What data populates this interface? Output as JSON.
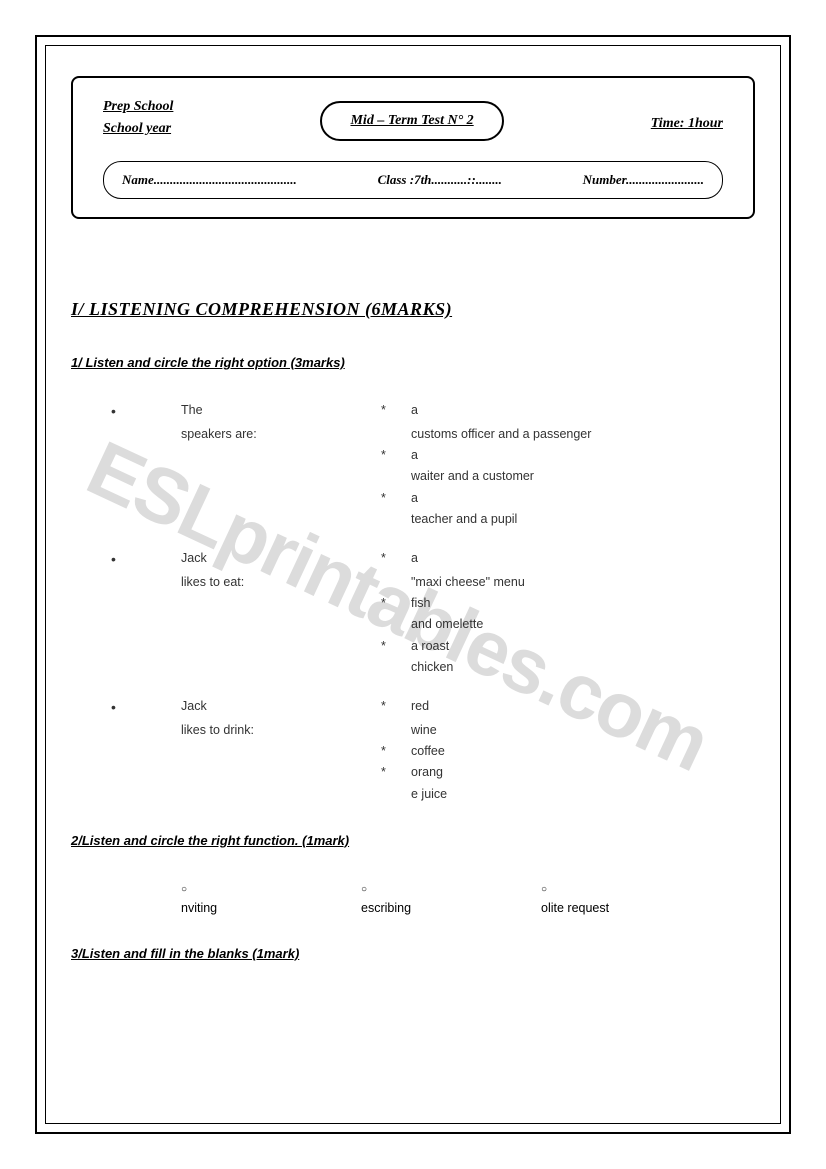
{
  "watermark": "ESLprintables.com",
  "header": {
    "school_line1": "Prep School",
    "school_line2": "School year",
    "title": "Mid – Term Test N° 2",
    "time": "Time: 1hour",
    "name_label": "Name............................................",
    "class_label": "Class :7th...........::........",
    "number_label": "Number........................"
  },
  "section1": {
    "title": "I/ LISTENING COMPREHENSION (6MARKS)",
    "sub1": {
      "heading": "1/ Listen and circle the right option (3marks)",
      "q1": {
        "stem_a": "The",
        "stem_b": "speakers are:",
        "opt1a": "a",
        "opt1b": "customs officer and a passenger",
        "opt2a": "a",
        "opt2b": "waiter and a customer",
        "opt3a": "a",
        "opt3b": "teacher and a pupil"
      },
      "q2": {
        "stem_a": "Jack",
        "stem_b": "likes to eat:",
        "opt1a": "a",
        "opt1b": "\"maxi cheese\" menu",
        "opt2a": "fish",
        "opt2b": "and omelette",
        "opt3a": "a roast",
        "opt3b": "chicken"
      },
      "q3": {
        "stem_a": "Jack",
        "stem_b": "likes to drink:",
        "opt1a": "red",
        "opt1b": "wine",
        "opt2a": "coffee",
        "opt3a": "orang",
        "opt3b": "e juice"
      }
    },
    "sub2": {
      "heading": "2/Listen and circle the right function. (1mark)",
      "opt1": "nviting",
      "opt2": "escribing",
      "opt3": "olite request"
    },
    "sub3": {
      "heading": "3/Listen and fill in the blanks  (1mark)"
    }
  }
}
